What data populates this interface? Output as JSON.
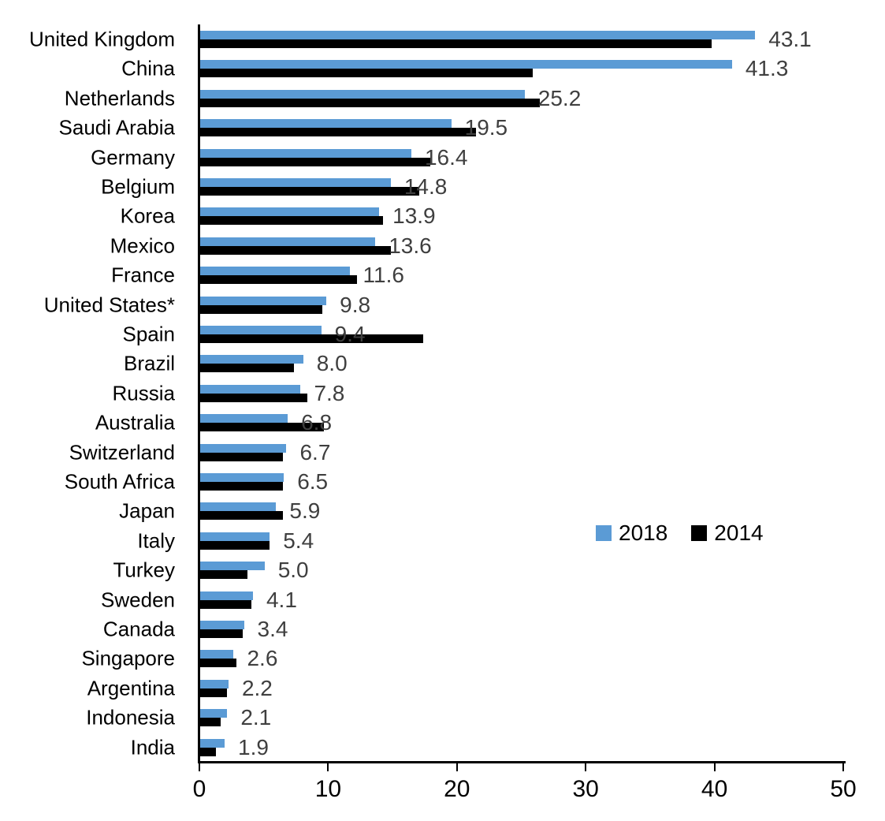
{
  "chart_data": {
    "type": "bar",
    "orientation": "horizontal",
    "title": "",
    "xlabel": "",
    "ylabel": "",
    "xlim": [
      0,
      50
    ],
    "x_ticks": [
      0,
      10,
      20,
      30,
      40,
      50
    ],
    "grid": false,
    "legend_position": "middle-right",
    "categories": [
      "United Kingdom",
      "China",
      "Netherlands",
      "Saudi Arabia",
      "Germany",
      "Belgium",
      "Korea",
      "Mexico",
      "France",
      "United States*",
      "Spain",
      "Brazil",
      "Russia",
      "Australia",
      "Switzerland",
      "South Africa",
      "Japan",
      "Italy",
      "Turkey",
      "Sweden",
      "Canada",
      "Singapore",
      "Argentina",
      "Indonesia",
      "India"
    ],
    "series": [
      {
        "name": "2018",
        "color": "#5b9bd5",
        "data_labels_shown": true,
        "values": [
          43.1,
          41.3,
          25.2,
          19.5,
          16.4,
          14.8,
          13.9,
          13.6,
          11.6,
          9.8,
          9.4,
          8.0,
          7.8,
          6.8,
          6.7,
          6.5,
          5.9,
          5.4,
          5.0,
          4.1,
          3.4,
          2.6,
          2.2,
          2.1,
          1.9
        ]
      },
      {
        "name": "2014",
        "color": "#000000",
        "data_labels_shown": false,
        "values": [
          39.7,
          25.8,
          26.4,
          21.4,
          17.9,
          17.0,
          14.2,
          14.8,
          12.2,
          9.5,
          17.3,
          7.3,
          8.3,
          9.6,
          6.4,
          6.4,
          6.4,
          5.4,
          3.7,
          4.0,
          3.3,
          2.8,
          2.1,
          1.6,
          1.2
        ]
      }
    ]
  },
  "colors": {
    "background": "#ffffff",
    "axis": "#000000",
    "category_text": "#000000",
    "tick_text": "#000000",
    "value_label_text": "#3f3f3f",
    "series_2018": "#5b9bd5",
    "series_2014": "#000000"
  },
  "legend": {
    "items": [
      {
        "label": "2018",
        "color": "#5b9bd5"
      },
      {
        "label": "2014",
        "color": "#000000"
      }
    ]
  }
}
